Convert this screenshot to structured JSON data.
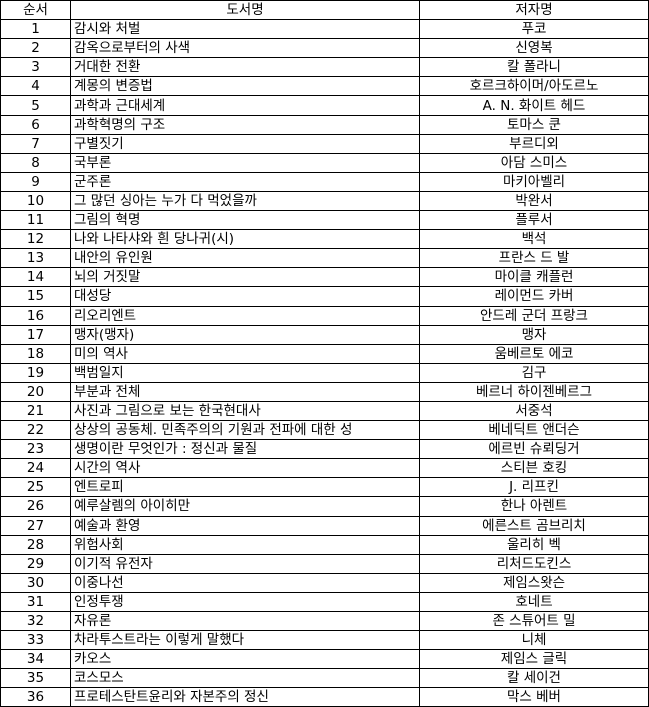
{
  "header": {
    "no": "순서",
    "title": "도서명",
    "author": "저자명"
  },
  "rows": [
    {
      "no": "1",
      "title": "감시와 처벌",
      "author": "푸코"
    },
    {
      "no": "2",
      "title": "감옥으로부터의 사색",
      "author": "신영복"
    },
    {
      "no": "3",
      "title": "거대한 전환",
      "author": "칼 폴라니"
    },
    {
      "no": "4",
      "title": "계몽의 변증법",
      "author": "호르크하이머/아도르노"
    },
    {
      "no": "5",
      "title": "과학과 근대세계",
      "author": "A. N. 화이트 헤드"
    },
    {
      "no": "6",
      "title": "과학혁명의 구조",
      "author": "토마스 쿤"
    },
    {
      "no": "7",
      "title": "구별짓기",
      "author": "부르디외"
    },
    {
      "no": "8",
      "title": "국부론",
      "author": "아담 스미스"
    },
    {
      "no": "9",
      "title": "군주론",
      "author": "마키아벨리"
    },
    {
      "no": "10",
      "title": "그 많던 싱아는 누가 다 먹었을까",
      "author": "박완서"
    },
    {
      "no": "11",
      "title": "그림의 혁명",
      "author": "플루서"
    },
    {
      "no": "12",
      "title": "나와 나타샤와 흰 당나귀(시)",
      "author": "백석"
    },
    {
      "no": "13",
      "title": "내안의 유인원",
      "author": "프란스 드 발"
    },
    {
      "no": "14",
      "title": "뇌의 거짓말",
      "author": "마이클 캐플런"
    },
    {
      "no": "15",
      "title": "대성당",
      "author": "레이먼드 카버"
    },
    {
      "no": "16",
      "title": "리오리엔트",
      "author": "안드레 군더 프랑크"
    },
    {
      "no": "17",
      "title": "맹자(맹자)",
      "author": "맹자"
    },
    {
      "no": "18",
      "title": "미의 역사",
      "author": "움베르토 에코"
    },
    {
      "no": "19",
      "title": "백범일지",
      "author": "김구"
    },
    {
      "no": "20",
      "title": "부분과 전체",
      "author": "베르너 하이젠베르그"
    },
    {
      "no": "21",
      "title": "사진과 그림으로 보는 한국현대사",
      "author": "서중석"
    },
    {
      "no": "22",
      "title": "상상의 공동체. 민족주의의 기원과 전파에 대한 성",
      "author": "베네딕트 앤더슨"
    },
    {
      "no": "23",
      "title": "생명이란 무엇인가 : 정신과 물질",
      "author": "에르빈 슈뢰딩거"
    },
    {
      "no": "24",
      "title": "시간의 역사",
      "author": "스티븐 호킹"
    },
    {
      "no": "25",
      "title": "엔트로피",
      "author": "J. 리프킨"
    },
    {
      "no": "26",
      "title": "예루살렘의 아이히만",
      "author": "한나 아렌트"
    },
    {
      "no": "27",
      "title": "예술과 환영",
      "author": "에른스트 곰브리치"
    },
    {
      "no": "28",
      "title": "위험사회",
      "author": "울리히 벡"
    },
    {
      "no": "29",
      "title": "이기적 유전자",
      "author": "리처드도킨스"
    },
    {
      "no": "30",
      "title": "이중나선",
      "author": "제임스왓슨"
    },
    {
      "no": "31",
      "title": "인정투쟁",
      "author": "호네트"
    },
    {
      "no": "32",
      "title": "자유론",
      "author": "존 스튜어트 밀"
    },
    {
      "no": "33",
      "title": "차라투스트라는 이렇게 말했다",
      "author": "니체"
    },
    {
      "no": "34",
      "title": "카오스",
      "author": "제임스 글릭"
    },
    {
      "no": "35",
      "title": "코스모스",
      "author": "칼 세이건"
    },
    {
      "no": "36",
      "title": "프로테스탄트윤리와 자본주의 정신",
      "author": "막스 베버"
    }
  ]
}
